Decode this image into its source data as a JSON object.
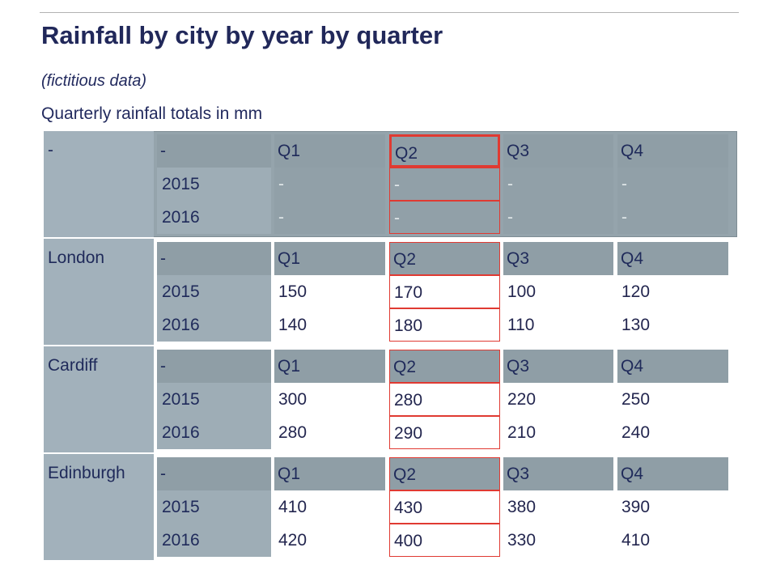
{
  "title": "Rainfall by city by year by quarter",
  "note": "(fictitious data)",
  "caption": "Quarterly rainfall totals in mm",
  "table": {
    "quarters": [
      "Q1",
      "Q2",
      "Q3",
      "Q4"
    ],
    "corner_label": "-",
    "highlighted_column": "Q2",
    "blocks": [
      {
        "city": "-",
        "corner": "-",
        "rows": [
          {
            "year": "2015",
            "values": [
              "-",
              "-",
              "-",
              "-"
            ]
          },
          {
            "year": "2016",
            "values": [
              "-",
              "-",
              "-",
              "-"
            ]
          }
        ]
      },
      {
        "city": "London",
        "corner": "-",
        "rows": [
          {
            "year": "2015",
            "values": [
              "150",
              "170",
              "100",
              "120"
            ]
          },
          {
            "year": "2016",
            "values": [
              "140",
              "180",
              "110",
              "130"
            ]
          }
        ]
      },
      {
        "city": "Cardiff",
        "corner": "-",
        "rows": [
          {
            "year": "2015",
            "values": [
              "300",
              "280",
              "220",
              "250"
            ]
          },
          {
            "year": "2016",
            "values": [
              "280",
              "290",
              "210",
              "240"
            ]
          }
        ]
      },
      {
        "city": "Edinburgh",
        "corner": "-",
        "rows": [
          {
            "year": "2015",
            "values": [
              "410",
              "430",
              "380",
              "390"
            ]
          },
          {
            "year": "2016",
            "values": [
              "420",
              "400",
              "330",
              "410"
            ]
          }
        ]
      }
    ]
  },
  "colors": {
    "highlight": "#e03a32",
    "header": "#8f9ea6",
    "city_cell": "#a2b1bb"
  }
}
